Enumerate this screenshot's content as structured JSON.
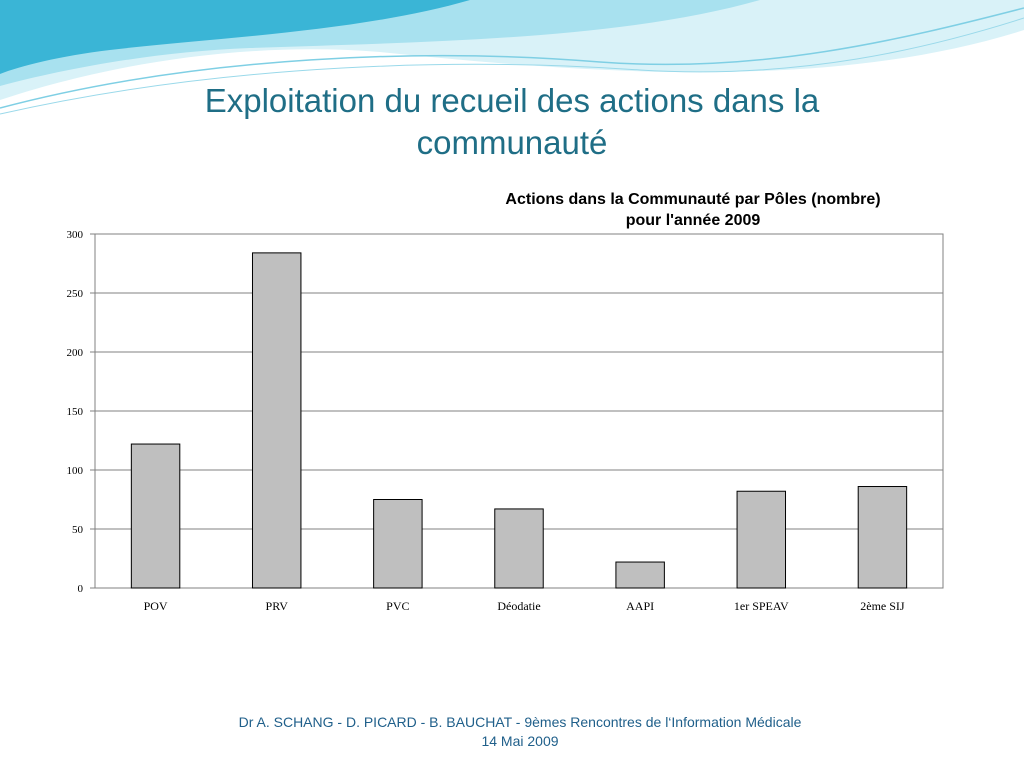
{
  "slide": {
    "title_line1": "Exploitation du recueil des actions dans la",
    "title_line2": "communauté",
    "footer_line1": "Dr A. SCHANG - D. PICARD - B. BAUCHAT - 9èmes Rencontres de l‘Information Médicale",
    "footer_line2": "14 Mai 2009"
  },
  "colors": {
    "title": "#1f6e86",
    "footer": "#1f5f8a",
    "bar_fill": "#bfbfbf",
    "wave_dark": "#3ab5d6",
    "wave_light": "#a8e1ef"
  },
  "chart_data": {
    "type": "bar",
    "title_line1": "Actions dans la Communauté par Pôles (nombre)",
    "title_line2": "pour l'année 2009",
    "categories": [
      "POV",
      "PRV",
      "PVC",
      "Déodatie",
      "AAPI",
      "1er SPEAV",
      "2ème SIJ"
    ],
    "values": [
      122,
      284,
      75,
      67,
      22,
      82,
      86
    ],
    "yticks": [
      "0",
      "50",
      "100",
      "150",
      "200",
      "250",
      "300"
    ],
    "ylim": [
      0,
      300
    ],
    "grid": true,
    "legend": "none"
  }
}
